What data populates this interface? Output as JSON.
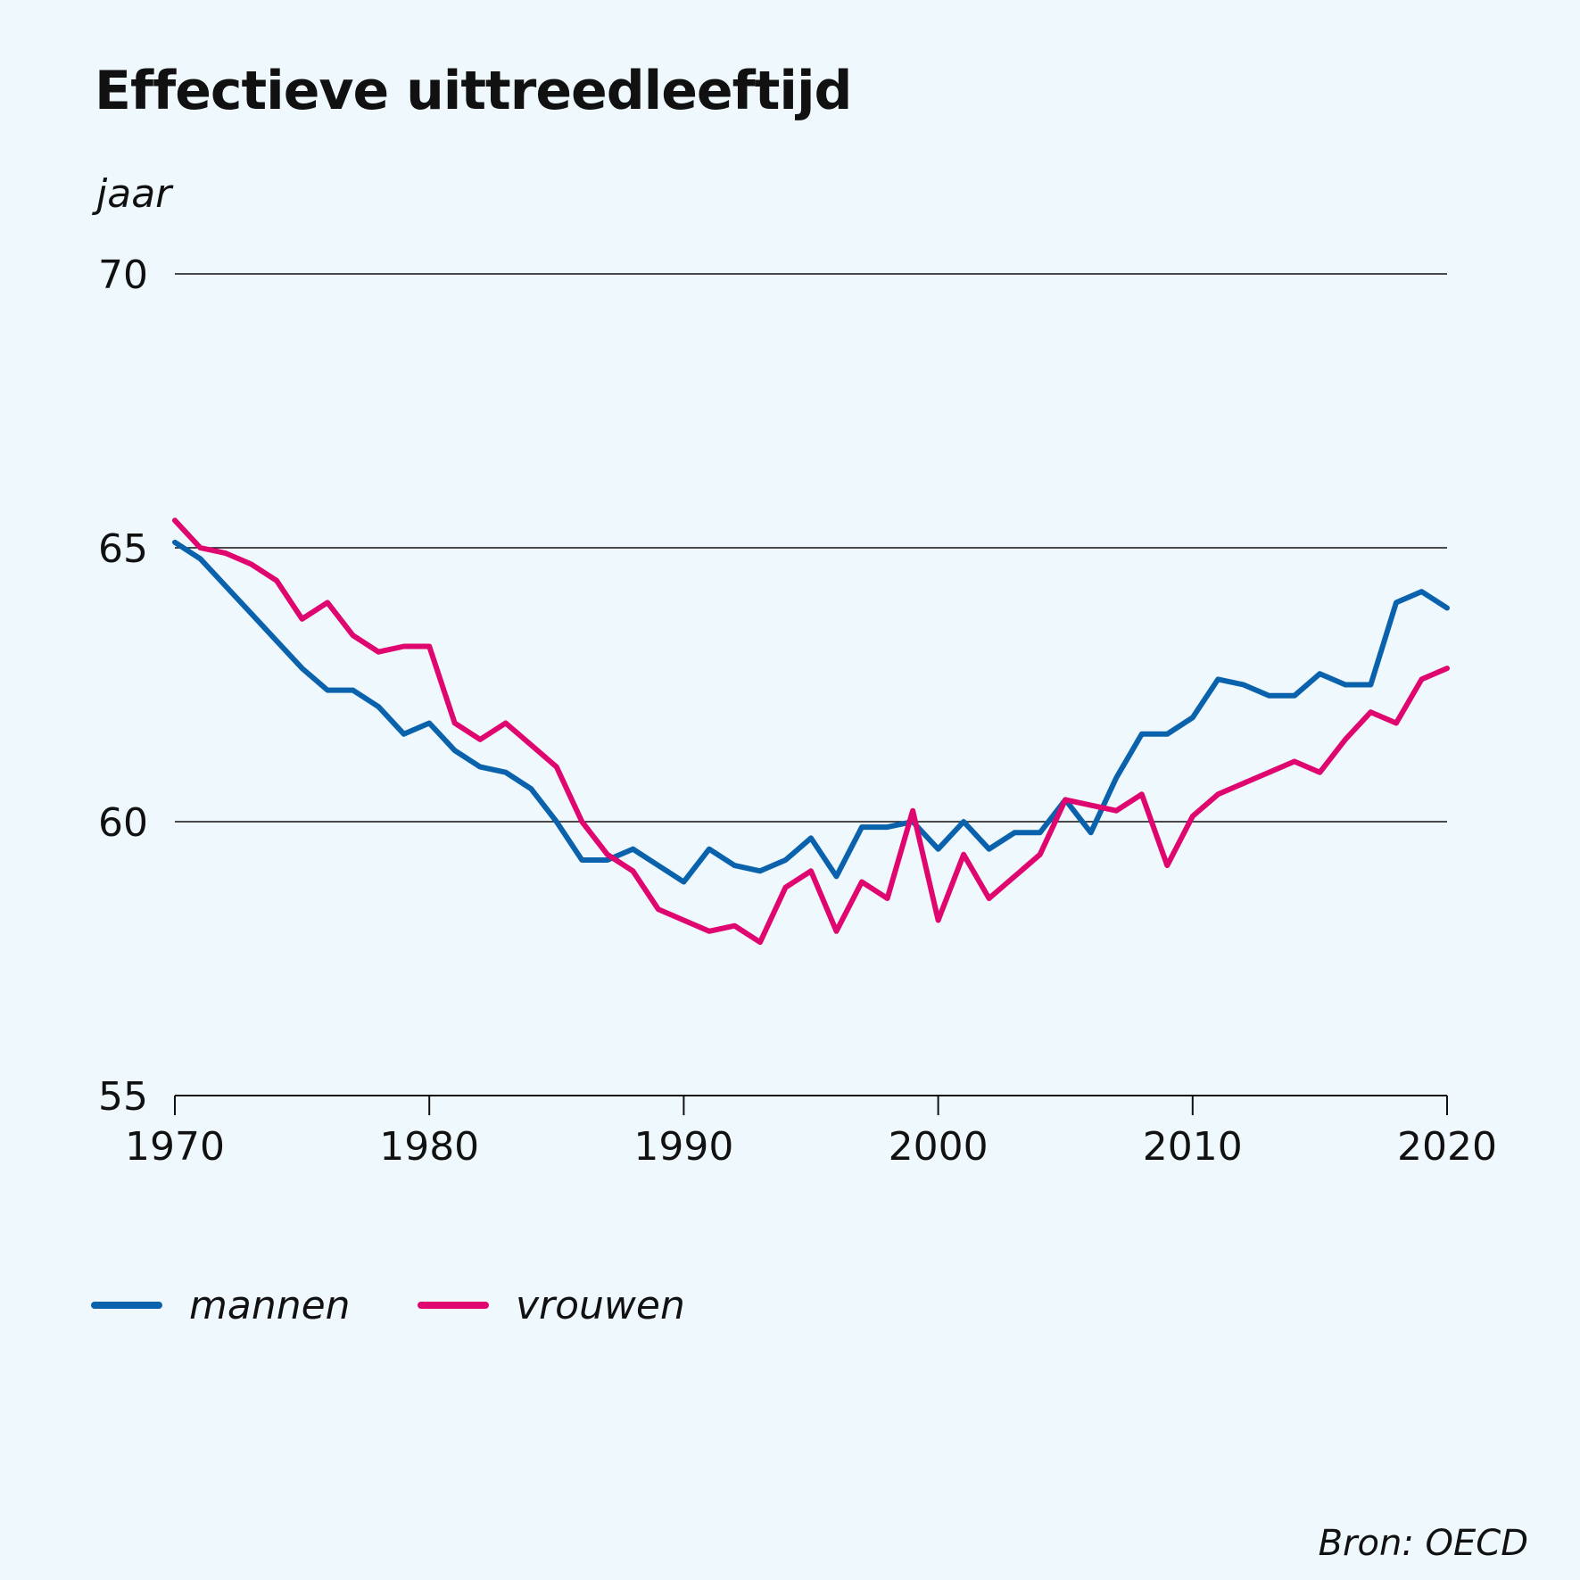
{
  "header": {
    "title": "Effectieve uittreedleeftijd"
  },
  "footer": {
    "source": "Bron: OECD"
  },
  "legend": [
    {
      "name": "mannen",
      "color": "#0a62ad"
    },
    {
      "name": "vrouwen",
      "color": "#e0066f"
    }
  ],
  "chart_data": {
    "type": "line",
    "title": "Effectieve uittreedleeftijd",
    "ylabel": "jaar",
    "xlabel": "",
    "ylim": [
      55,
      70
    ],
    "xlim": [
      1970,
      2020
    ],
    "yticks": [
      55,
      60,
      65,
      70
    ],
    "xticks": [
      1970,
      1980,
      1990,
      2000,
      2010,
      2020
    ],
    "grid": "horizontal",
    "legend_position": "bottom-left",
    "x": [
      1970,
      1971,
      1972,
      1973,
      1974,
      1975,
      1976,
      1977,
      1978,
      1979,
      1980,
      1981,
      1982,
      1983,
      1984,
      1985,
      1986,
      1987,
      1988,
      1989,
      1990,
      1991,
      1992,
      1993,
      1994,
      1995,
      1996,
      1997,
      1998,
      1999,
      2000,
      2001,
      2002,
      2003,
      2004,
      2005,
      2006,
      2007,
      2008,
      2009,
      2010,
      2011,
      2012,
      2013,
      2014,
      2015,
      2016,
      2017,
      2018,
      2019,
      2020
    ],
    "series": [
      {
        "name": "mannen",
        "color": "#0a62ad",
        "values": [
          65.1,
          64.8,
          64.3,
          63.8,
          63.3,
          62.8,
          62.4,
          62.4,
          62.1,
          61.6,
          61.8,
          61.3,
          61.0,
          60.9,
          60.6,
          60.0,
          59.3,
          59.3,
          59.5,
          59.2,
          58.9,
          59.5,
          59.2,
          59.1,
          59.3,
          59.7,
          59.0,
          59.9,
          59.9,
          60.0,
          59.5,
          60.0,
          59.5,
          59.8,
          59.8,
          60.4,
          59.8,
          60.8,
          61.6,
          61.6,
          61.9,
          62.6,
          62.5,
          62.3,
          62.3,
          62.7,
          62.5,
          62.5,
          64.0,
          64.2,
          63.9
        ]
      },
      {
        "name": "vrouwen",
        "color": "#e0066f",
        "values": [
          65.5,
          65.0,
          64.9,
          64.7,
          64.4,
          63.7,
          64.0,
          63.4,
          63.1,
          63.2,
          63.2,
          61.8,
          61.5,
          61.8,
          61.4,
          61.0,
          60.0,
          59.4,
          59.1,
          58.4,
          58.2,
          58.0,
          58.1,
          57.8,
          58.8,
          59.1,
          58.0,
          58.9,
          58.6,
          60.2,
          58.2,
          59.4,
          58.6,
          59.0,
          59.4,
          60.4,
          60.3,
          60.2,
          60.5,
          59.2,
          60.1,
          60.5,
          60.7,
          60.9,
          61.1,
          60.9,
          61.5,
          62.0,
          61.8,
          62.6,
          62.8
        ]
      }
    ]
  }
}
